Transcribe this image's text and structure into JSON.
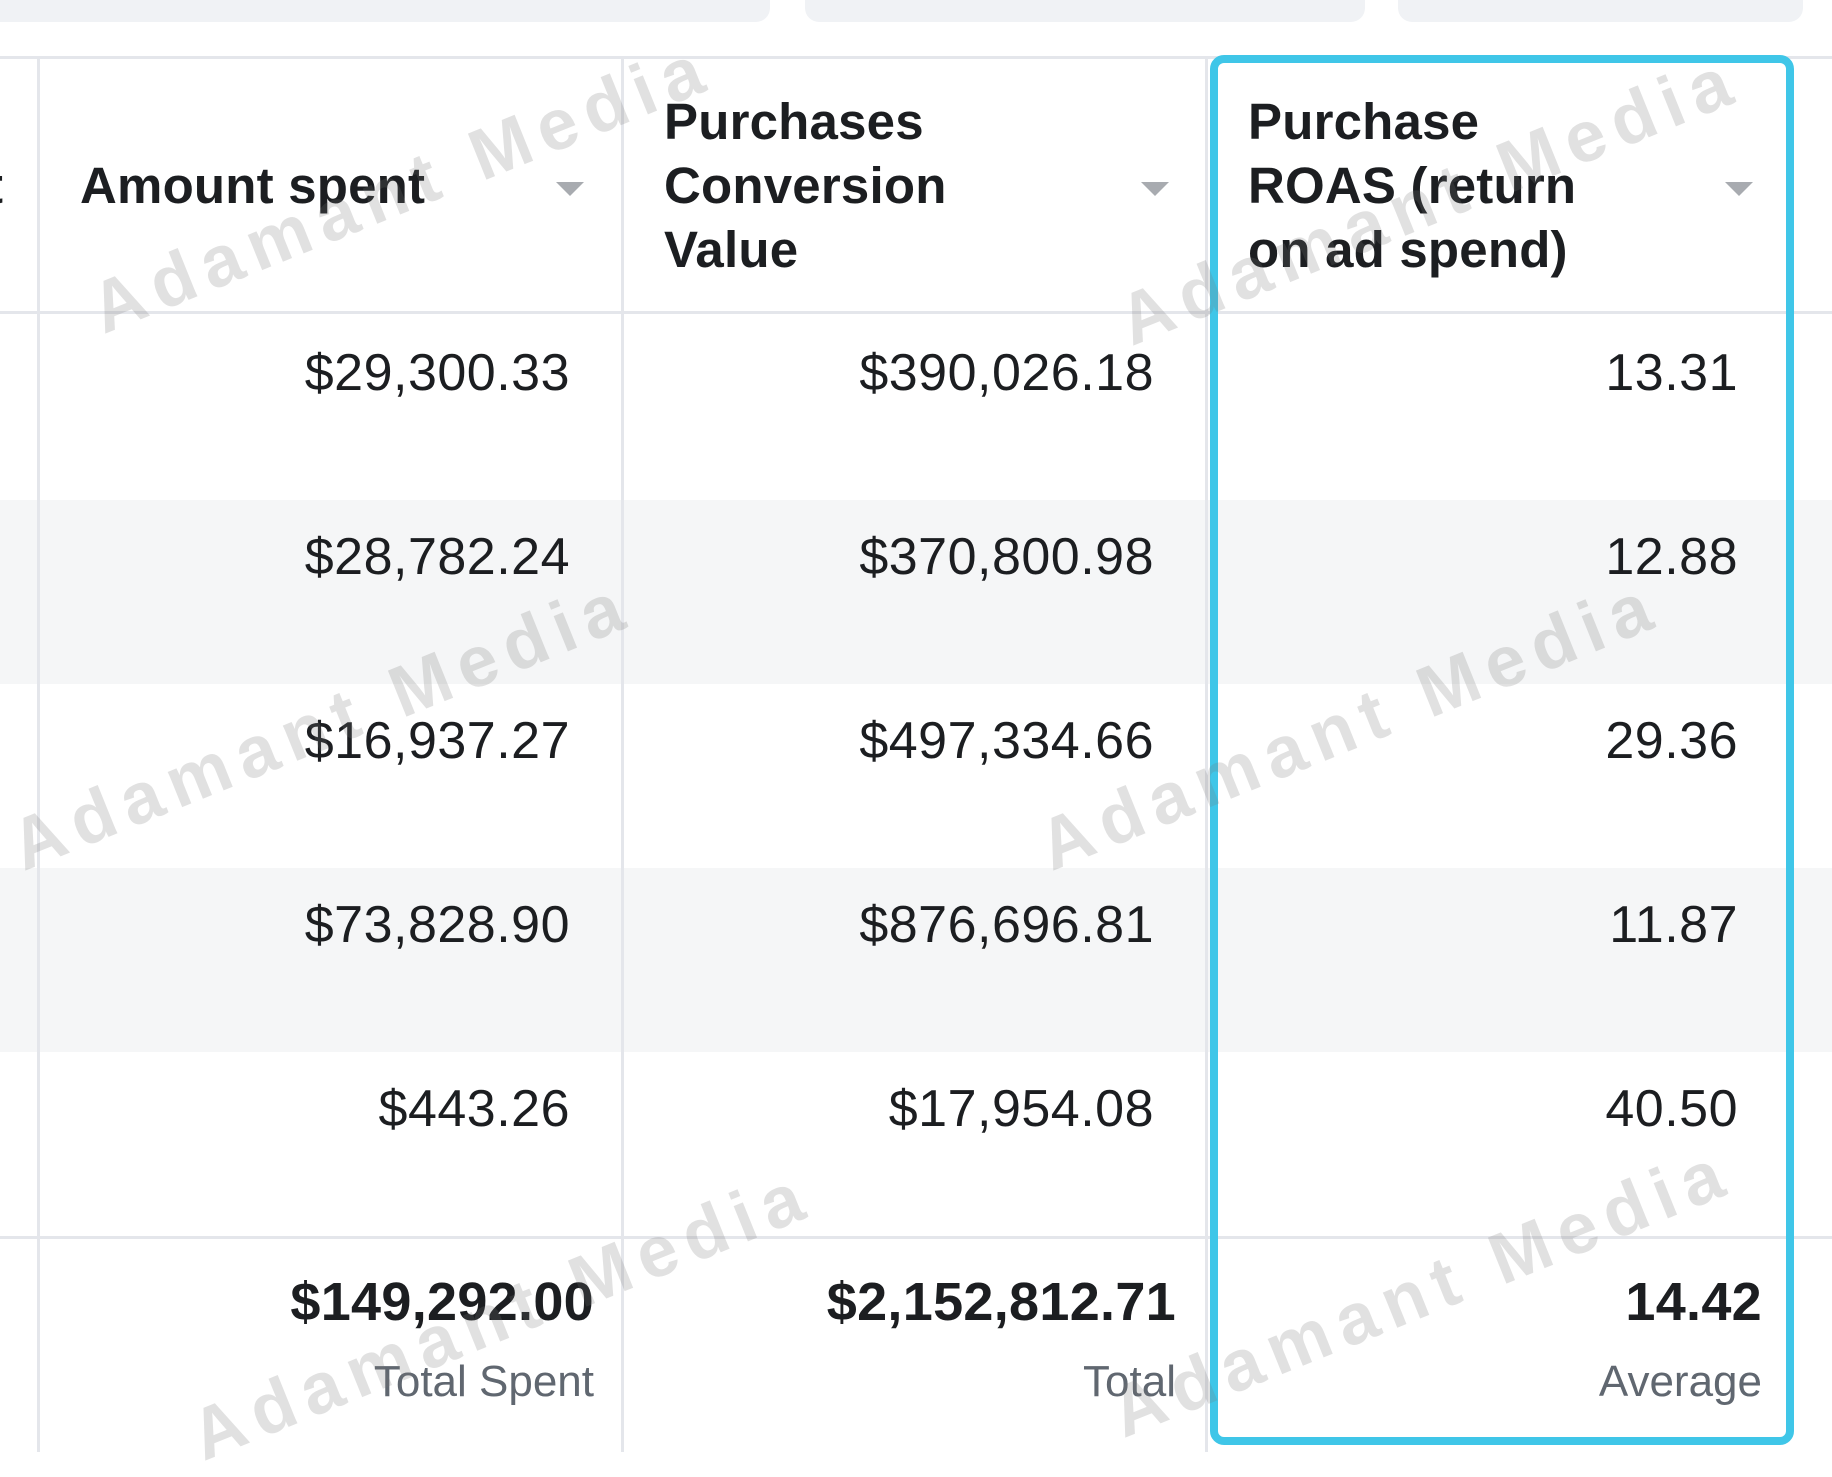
{
  "table": {
    "partial_header": "t",
    "columns": [
      {
        "header": [
          "Amount spent"
        ]
      },
      {
        "header": [
          "Purchases",
          "Conversion",
          "Value"
        ]
      },
      {
        "header": [
          "Purchase",
          "ROAS (return",
          "on ad spend)"
        ]
      }
    ],
    "rows": [
      [
        "$29,300.33",
        "$390,026.18",
        "13.31"
      ],
      [
        "$28,782.24",
        "$370,800.98",
        "12.88"
      ],
      [
        "$16,937.27",
        "$497,334.66",
        "29.36"
      ],
      [
        "$73,828.90",
        "$876,696.81",
        "11.87"
      ],
      [
        "$443.26",
        "$17,954.08",
        "40.50"
      ]
    ],
    "totals": [
      {
        "value": "$149,292.00",
        "label": "Total Spent"
      },
      {
        "value": "$2,152,812.71",
        "label": "Total"
      },
      {
        "value": "14.42",
        "label": "Average"
      }
    ]
  },
  "watermark": "Adamant Media",
  "colors": {
    "highlight_border": "#3fc6e8",
    "row_band": "#f5f6f7",
    "rule": "#e4e6eb",
    "label_grey": "#606770"
  }
}
